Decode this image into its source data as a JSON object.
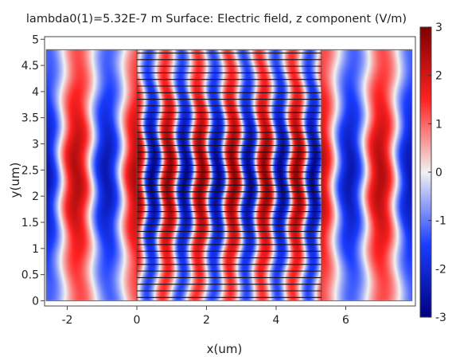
{
  "chart_data": {
    "type": "heatmap",
    "title": "lambda0(1)=5.32E-7 m   Surface: Electric field, z component (V/m)",
    "xlabel": "x(um)",
    "ylabel": "y(um)",
    "xlim": [
      -2.65,
      8.0
    ],
    "ylim": [
      -0.1,
      5.05
    ],
    "x_ticks": [
      -2,
      0,
      2,
      4,
      6
    ],
    "y_ticks": [
      0,
      0.5,
      1,
      1.5,
      2,
      2.5,
      3,
      3.5,
      4,
      4.5,
      5
    ],
    "colorbar": {
      "min": -3,
      "max": 3,
      "ticks": [
        3,
        2,
        1,
        0,
        -1,
        -2,
        -3
      ],
      "colormap": "wave",
      "colors": {
        "neg_max": "#00007f",
        "neg_mid": "#1a3dff",
        "zero": "#f2f2f2",
        "pos_mid": "#ff2222",
        "pos_max": "#7f0000"
      }
    },
    "domain": {
      "x": [
        -2.6,
        7.9
      ],
      "y": [
        0,
        4.8
      ]
    },
    "regions": [
      {
        "name": "left",
        "x": [
          -2.6,
          0.0
        ],
        "kx": 3.6,
        "amp": 2.4
      },
      {
        "name": "center",
        "x": [
          0.0,
          5.3
        ],
        "kx": 6.8,
        "amp": 2.8
      },
      {
        "name": "right",
        "x": [
          5.3,
          7.9
        ],
        "kx": 3.6,
        "amp": 2.4
      }
    ],
    "grating": {
      "x": [
        0.0,
        5.3
      ],
      "y": [
        0.0,
        4.8
      ],
      "count": 38
    }
  }
}
